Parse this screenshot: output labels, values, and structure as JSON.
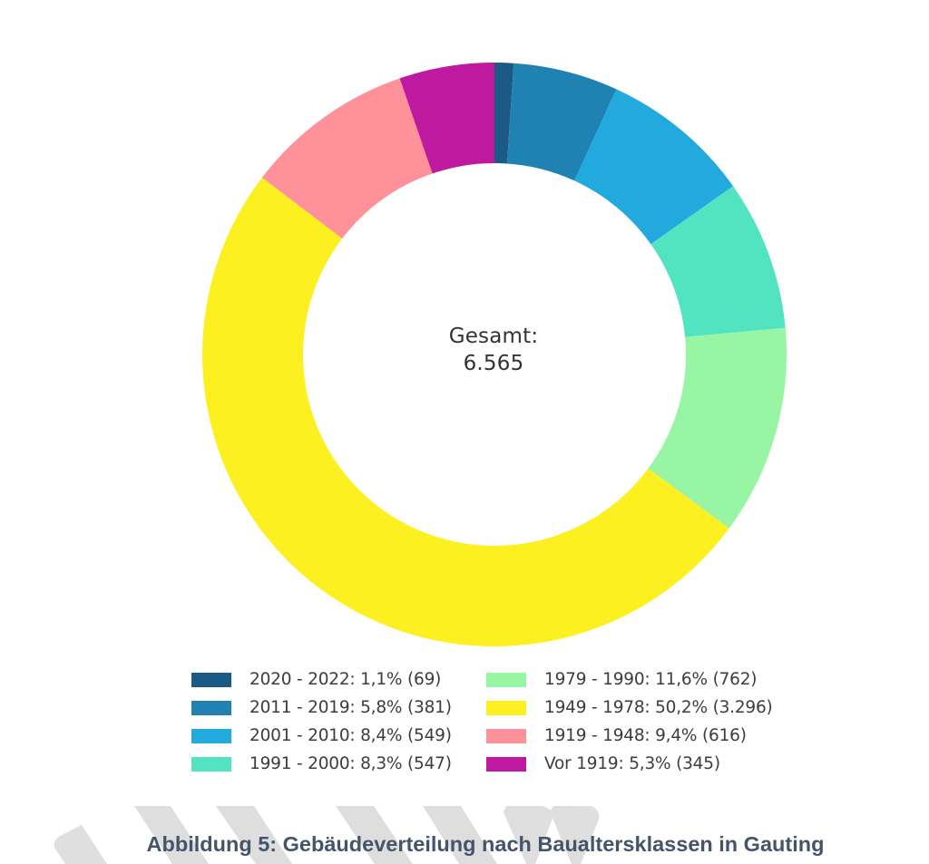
{
  "chart_data": {
    "type": "pie",
    "variant": "donut",
    "title": "Abbildung 5: Gebäudeverteilung nach Baualtersklassen in Gauting",
    "center_label": "Gesamt:",
    "center_value": "6.565",
    "total": 6565,
    "start_angle_deg": 0,
    "direction": "clockwise",
    "categories": [
      "2020 - 2022",
      "2011 - 2019",
      "2001 - 2010",
      "1991 - 2000",
      "1979 - 1990",
      "1949 - 1978",
      "1919 - 1948",
      "Vor 1919"
    ],
    "values": [
      69,
      381,
      549,
      547,
      762,
      3296,
      616,
      345
    ],
    "percentages": [
      1.1,
      5.8,
      8.4,
      8.3,
      11.6,
      50.2,
      9.4,
      5.3
    ],
    "colors": [
      "#1b5a85",
      "#1f82b3",
      "#22a9de",
      "#52e3c1",
      "#98f5a3",
      "#fcf020",
      "#ff919a",
      "#be1a9f"
    ],
    "legend_position": "bottom"
  },
  "legend": [
    {
      "label": "2020 - 2022: 1,1% (69)",
      "color": "#1b5a85"
    },
    {
      "label": "1979 - 1990: 11,6% (762)",
      "color": "#98f5a3"
    },
    {
      "label": "2011 - 2019: 5,8% (381)",
      "color": "#1f82b3"
    },
    {
      "label": "1949 - 1978: 50,2% (3.296)",
      "color": "#fcf020"
    },
    {
      "label": "2001 - 2010: 8,4% (549)",
      "color": "#22a9de"
    },
    {
      "label": "1919 - 1948: 9,4% (616)",
      "color": "#ff919a"
    },
    {
      "label": "1991 - 2000: 8,3% (547)",
      "color": "#52e3c1"
    },
    {
      "label": "Vor 1919: 5,3% (345)",
      "color": "#be1a9f"
    }
  ],
  "center": {
    "label": "Gesamt:",
    "value": "6.565"
  },
  "caption": "Abbildung 5: Gebäudeverteilung nach Baualtersklassen in Gauting"
}
